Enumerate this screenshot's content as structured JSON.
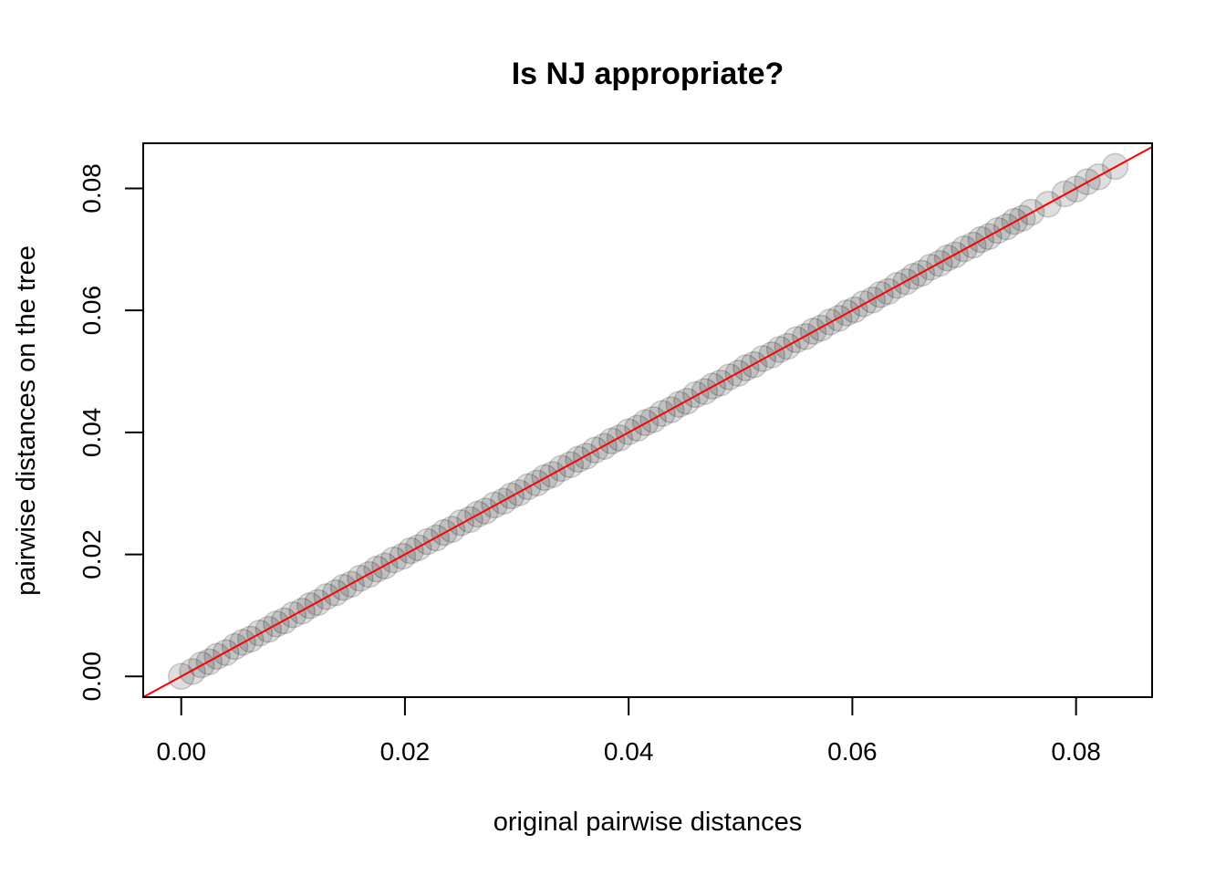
{
  "chart_data": {
    "type": "scatter",
    "title": "Is NJ appropriate?",
    "xlabel": "original pairwise distances",
    "ylabel": "pairwise distances on the tree",
    "xlim": [
      -0.0034,
      0.0868
    ],
    "ylim": [
      -0.0034,
      0.0874
    ],
    "x_ticks": [
      "0.00",
      "0.02",
      "0.04",
      "0.06",
      "0.08"
    ],
    "y_ticks": [
      "0.00",
      "0.02",
      "0.04",
      "0.06",
      "0.08"
    ],
    "grid": false,
    "legend": "none",
    "reference_line": {
      "type": "abline",
      "intercept": 0,
      "slope": 1,
      "color": "#ff0000"
    },
    "point_color": "#000000",
    "point_opacity": 0.13,
    "x": [
      0.0,
      0.001,
      0.0018,
      0.0025,
      0.0032,
      0.004,
      0.0048,
      0.0055,
      0.0062,
      0.007,
      0.0078,
      0.0085,
      0.0092,
      0.01,
      0.0108,
      0.0115,
      0.0122,
      0.013,
      0.0138,
      0.0145,
      0.0152,
      0.016,
      0.0168,
      0.0175,
      0.0182,
      0.019,
      0.0198,
      0.0205,
      0.0212,
      0.022,
      0.0228,
      0.0235,
      0.0242,
      0.025,
      0.0258,
      0.0265,
      0.0272,
      0.028,
      0.0288,
      0.0295,
      0.0302,
      0.031,
      0.0318,
      0.0325,
      0.0332,
      0.034,
      0.0348,
      0.0355,
      0.0362,
      0.037,
      0.0378,
      0.0385,
      0.0392,
      0.04,
      0.0408,
      0.0415,
      0.0422,
      0.043,
      0.0438,
      0.0445,
      0.0452,
      0.046,
      0.0468,
      0.0475,
      0.0482,
      0.049,
      0.0498,
      0.0505,
      0.0512,
      0.052,
      0.0528,
      0.0535,
      0.0542,
      0.055,
      0.0558,
      0.0565,
      0.0572,
      0.058,
      0.0588,
      0.0595,
      0.0602,
      0.061,
      0.0618,
      0.0625,
      0.0632,
      0.064,
      0.0648,
      0.0655,
      0.0662,
      0.067,
      0.0678,
      0.0685,
      0.0692,
      0.07,
      0.0708,
      0.0715,
      0.0722,
      0.073,
      0.0738,
      0.0745,
      0.0752,
      0.076,
      0.0775,
      0.079,
      0.08,
      0.081,
      0.082,
      0.0835
    ],
    "y": [
      0.0,
      0.0008,
      0.0019,
      0.0024,
      0.0033,
      0.0039,
      0.0049,
      0.0056,
      0.0061,
      0.0071,
      0.0077,
      0.0086,
      0.0091,
      0.0101,
      0.0107,
      0.0116,
      0.0121,
      0.0131,
      0.0137,
      0.0146,
      0.0151,
      0.0161,
      0.0167,
      0.0176,
      0.0181,
      0.0191,
      0.0197,
      0.0206,
      0.0211,
      0.0221,
      0.0227,
      0.0236,
      0.0241,
      0.0252,
      0.0257,
      0.0266,
      0.0271,
      0.0281,
      0.0287,
      0.0296,
      0.0301,
      0.0311,
      0.0317,
      0.0326,
      0.0331,
      0.0341,
      0.0347,
      0.0356,
      0.0361,
      0.0371,
      0.0377,
      0.0386,
      0.0391,
      0.0401,
      0.0407,
      0.0416,
      0.0421,
      0.0431,
      0.0437,
      0.0446,
      0.0451,
      0.0462,
      0.0467,
      0.0476,
      0.0481,
      0.0491,
      0.0497,
      0.0506,
      0.0511,
      0.0521,
      0.0527,
      0.0536,
      0.0541,
      0.0552,
      0.0557,
      0.0566,
      0.0571,
      0.0581,
      0.0587,
      0.0596,
      0.0601,
      0.0611,
      0.0617,
      0.0626,
      0.0631,
      0.0641,
      0.0647,
      0.0656,
      0.0661,
      0.0671,
      0.0677,
      0.0686,
      0.0691,
      0.0701,
      0.0707,
      0.0716,
      0.0721,
      0.0731,
      0.0737,
      0.0746,
      0.0751,
      0.0761,
      0.0774,
      0.0791,
      0.0799,
      0.0811,
      0.0819,
      0.0836
    ]
  }
}
